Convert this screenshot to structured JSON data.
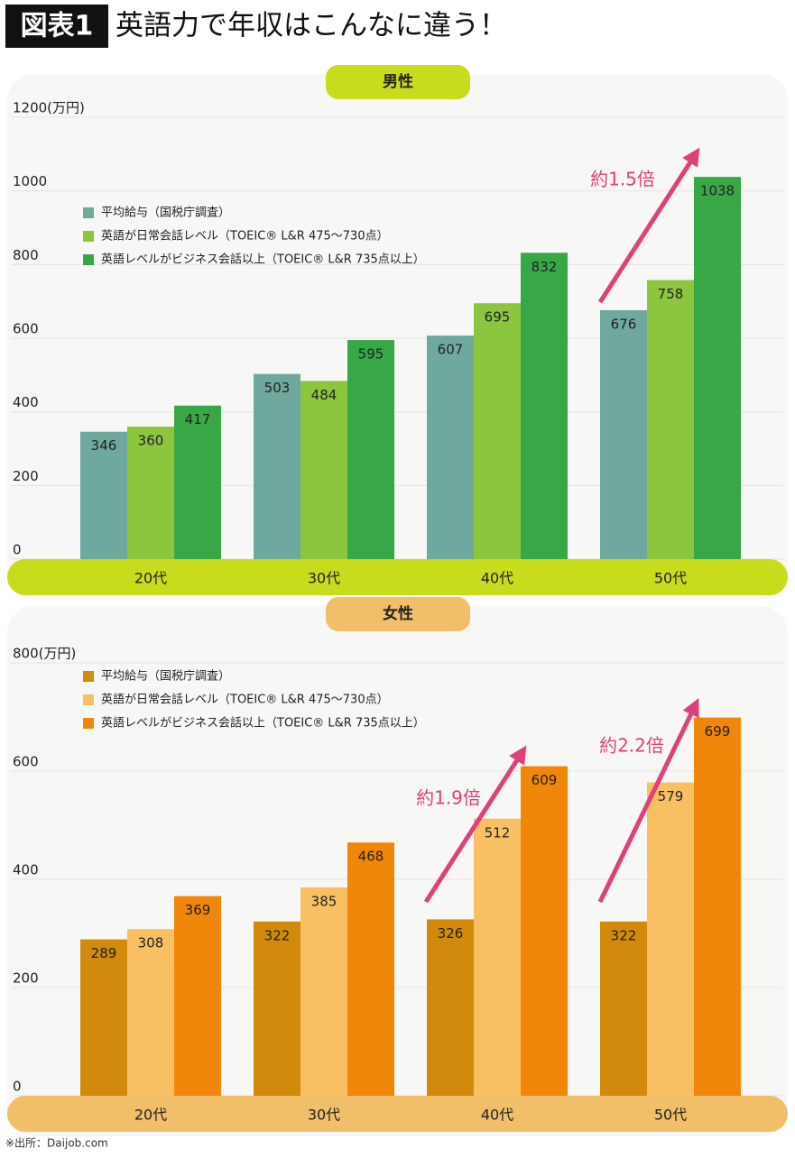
{
  "header": {
    "badge": "図表1",
    "title": "英語力で年収はこんなに違う！"
  },
  "chart_data": [
    {
      "type": "bar",
      "title": "男性",
      "categories": [
        "20代",
        "30代",
        "40代",
        "50代"
      ],
      "series": [
        {
          "name": "平均給与（国税庁調査）",
          "color": "#6fa89c",
          "values": [
            346,
            503,
            607,
            676
          ]
        },
        {
          "name": "英語が日常会話レベル（TOEIC® L&R 475〜730点）",
          "color": "#8cc63f",
          "values": [
            360,
            484,
            695,
            758
          ]
        },
        {
          "name": "英語レベルがビジネス会話以上（TOEIC® L&R 735点以上）",
          "color": "#38a846",
          "values": [
            417,
            595,
            832,
            1038
          ]
        }
      ],
      "ylim": [
        0,
        1200
      ],
      "yticks": [
        0,
        200,
        400,
        600,
        800,
        1000,
        {
          "value": 1200,
          "label": "1200(万円)"
        }
      ],
      "grid": true,
      "annotations": [
        "約1.5倍"
      ]
    },
    {
      "type": "bar",
      "title": "女性",
      "categories": [
        "20代",
        "30代",
        "40代",
        "50代"
      ],
      "series": [
        {
          "name": "平均給与（国税庁調査）",
          "color": "#d18a0c",
          "values": [
            289,
            322,
            326,
            322
          ]
        },
        {
          "name": "英語が日常会話レベル（TOEIC® L&R 475〜730点）",
          "color": "#f9c063",
          "values": [
            308,
            385,
            512,
            579
          ]
        },
        {
          "name": "英語レベルがビジネス会話以上（TOEIC® L&R 735点以上）",
          "color": "#f0860a",
          "values": [
            369,
            468,
            609,
            699
          ]
        }
      ],
      "ylim": [
        0,
        800
      ],
      "yticks": [
        0,
        200,
        400,
        600,
        {
          "value": 800,
          "label": "800(万円)"
        }
      ],
      "grid": true,
      "annotations": [
        "約1.9倍",
        "約2.2倍"
      ]
    }
  ],
  "source": "※出所：Daijob.com"
}
